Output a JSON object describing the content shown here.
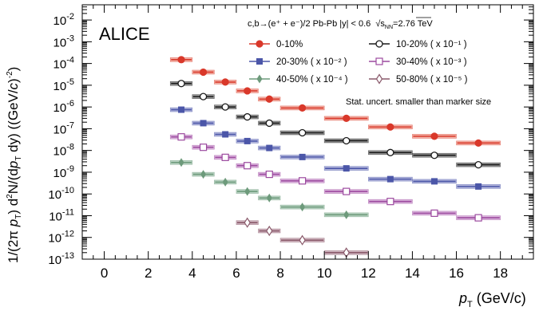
{
  "chart_data": {
    "type": "scatter",
    "experiment": "ALICE",
    "process": "c,b→(e⁺ + e⁻)/2  Pb-Pb |y| < 0.6",
    "energy_value": "2.76 TeV",
    "note": "Stat. uncert. smaller than marker size",
    "xlabel": {
      "main": "p",
      "sub": "T",
      "unit": " (GeV/c)"
    },
    "ylabel": "1/(2π p_T) d²N/(dp_T dy) ((GeV/c)⁻²)",
    "xlim": [
      -1,
      19.5
    ],
    "ylim_log10": [
      -13,
      -1.3
    ],
    "x_ticks": [
      "0",
      "2",
      "4",
      "6",
      "8",
      "10",
      "12",
      "14",
      "16",
      "18"
    ],
    "y_ticks": [
      {
        "m": "10",
        "e": "-2"
      },
      {
        "m": "10",
        "e": "-3"
      },
      {
        "m": "10",
        "e": "-4"
      },
      {
        "m": "10",
        "e": "-5"
      },
      {
        "m": "10",
        "e": "-6"
      },
      {
        "m": "10",
        "e": "-7"
      },
      {
        "m": "10",
        "e": "-8"
      },
      {
        "m": "10",
        "e": "-9"
      },
      {
        "m": "10",
        "e": "-10"
      },
      {
        "m": "10",
        "e": "-11"
      },
      {
        "m": "10",
        "e": "-12"
      },
      {
        "m": "10",
        "e": "-13"
      }
    ],
    "bin_edges": [
      [
        3,
        4
      ],
      [
        4,
        5
      ],
      [
        5,
        6
      ],
      [
        6,
        7
      ],
      [
        7,
        8
      ],
      [
        8,
        10
      ],
      [
        10,
        12
      ],
      [
        12,
        14
      ],
      [
        14,
        16
      ],
      [
        16,
        18
      ]
    ],
    "x": [
      3.5,
      4.5,
      5.5,
      6.5,
      7.5,
      9,
      11,
      13,
      15,
      17
    ],
    "series": [
      {
        "name": "0-10%",
        "marker": "circle-filled",
        "color": "#d9382a",
        "box": "#f2b3a8",
        "y": [
          0.00015,
          4e-05,
          1.4e-05,
          5.5e-06,
          2.3e-06,
          9e-07,
          3e-07,
          1.2e-07,
          4.5e-08,
          2.2e-08
        ]
      },
      {
        "name": "10-20% ( x 10⁻¹ )",
        "marker": "circle-open",
        "color": "#1a1a1a",
        "box": "#9a9a9a",
        "y": [
          1.2e-05,
          3e-06,
          1e-06,
          3.5e-07,
          1.8e-07,
          6.5e-08,
          2.8e-08,
          8e-09,
          6e-09,
          2.2e-09
        ]
      },
      {
        "name": "20-30% ( x 10⁻² )",
        "marker": "square-filled",
        "color": "#4b56a8",
        "box": "#b3b6dc",
        "y": [
          7.5e-07,
          1.8e-07,
          5.5e-08,
          2.7e-08,
          1.3e-08,
          5e-09,
          1.5e-09,
          4.8e-10,
          3.8e-10,
          2.2e-10
        ]
      },
      {
        "name": "30-40% ( x 10⁻³ )",
        "marker": "square-open",
        "color": "#9c4a9f",
        "box": "#dab5dc",
        "y": [
          4.2e-08,
          1.4e-08,
          4.8e-09,
          2e-09,
          8e-10,
          4e-10,
          1.3e-10,
          4.5e-11,
          1.3e-11,
          8e-12
        ]
      },
      {
        "name": "40-50% ( x 10⁻⁴ )",
        "marker": "diamond-filled",
        "color": "#6d9a7b",
        "box": "#b9d2c2",
        "y": [
          2.8e-09,
          8e-10,
          3.5e-10,
          1.3e-10,
          6.5e-11,
          2.5e-11,
          1.1e-11
        ]
      },
      {
        "name": "50-80% ( x 10⁻⁵ )",
        "marker": "diamond-open",
        "color": "#8a5a6b",
        "box": "#cfb5bf",
        "y": [
          null,
          null,
          null,
          4.8e-12,
          2e-12,
          7.5e-13,
          2e-13
        ]
      }
    ],
    "legend_placement": "top-right",
    "grid": false
  }
}
